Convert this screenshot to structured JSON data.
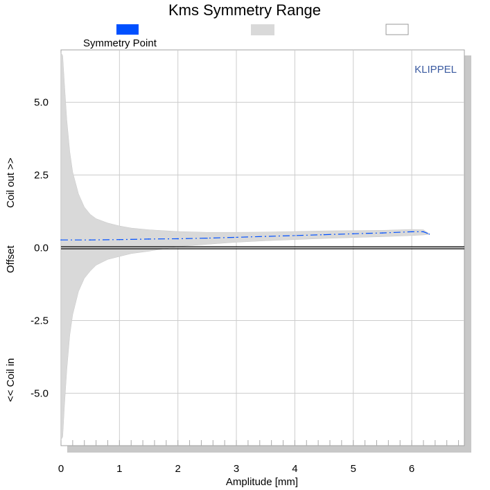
{
  "chart_data": {
    "type": "area",
    "title": "Kms Symmetry Range",
    "xlabel": "Amplitude [mm]",
    "ylabel_parts": [
      "<< Coil in",
      "Offset",
      "Coil out >>"
    ],
    "watermark": "KLIPPEL",
    "xlim": [
      0,
      6.9
    ],
    "ylim": [
      -6.8,
      6.8
    ],
    "x_ticks": [
      "0",
      "1",
      "2",
      "3",
      "4",
      "5",
      "6"
    ],
    "x_tick_values": [
      0,
      1,
      2,
      3,
      4,
      5,
      6
    ],
    "y_ticks": [
      "5.0",
      "2.5",
      "0.0",
      "-2.5",
      "-5.0"
    ],
    "y_tick_values": [
      5.0,
      2.5,
      0.0,
      -2.5,
      -5.0
    ],
    "grid": true,
    "legend": {
      "placement": "top",
      "entries": [
        {
          "label": "Symmetry Point",
          "color": "#0050ff",
          "style": "filled-box"
        },
        {
          "label": "",
          "color": "#d9d9d9",
          "style": "filled-box"
        },
        {
          "label": "",
          "color": "#ffffff",
          "style": "outlined-box"
        }
      ]
    },
    "series": [
      {
        "name": "Symmetry Point",
        "type": "line",
        "style": "dashed",
        "color": "#0050ff",
        "x": [
          0.0,
          0.5,
          1.0,
          1.5,
          2.0,
          2.5,
          3.0,
          3.5,
          4.0,
          4.5,
          5.0,
          5.5,
          6.0,
          6.2,
          6.3
        ],
        "values": [
          0.27,
          0.27,
          0.28,
          0.3,
          0.31,
          0.33,
          0.36,
          0.39,
          0.42,
          0.45,
          0.48,
          0.51,
          0.55,
          0.55,
          0.47
        ]
      },
      {
        "name": "",
        "type": "band",
        "color": "#d9d9d9",
        "x": [
          0.0,
          0.03,
          0.06,
          0.1,
          0.15,
          0.2,
          0.3,
          0.4,
          0.5,
          0.6,
          0.8,
          1.0,
          1.2,
          1.5,
          2.0,
          2.5,
          3.0,
          3.5,
          4.0,
          4.5,
          5.0,
          5.5,
          6.0,
          6.2,
          6.3
        ],
        "upper": [
          6.7,
          6.6,
          5.6,
          4.4,
          3.3,
          2.6,
          1.85,
          1.4,
          1.15,
          1.0,
          0.85,
          0.75,
          0.68,
          0.62,
          0.56,
          0.53,
          0.53,
          0.54,
          0.56,
          0.58,
          0.59,
          0.6,
          0.63,
          0.62,
          0.48
        ],
        "lower": [
          -6.6,
          -6.5,
          -5.4,
          -4.2,
          -3.0,
          -2.3,
          -1.5,
          -1.05,
          -0.8,
          -0.6,
          -0.4,
          -0.3,
          -0.2,
          -0.12,
          0.04,
          0.12,
          0.19,
          0.24,
          0.28,
          0.32,
          0.35,
          0.38,
          0.42,
          0.44,
          0.46
        ]
      },
      {
        "name": "",
        "type": "line",
        "style": "solid",
        "color": "#000000",
        "x": [
          0,
          6.9
        ],
        "values": [
          0.0,
          0.0
        ]
      }
    ]
  }
}
